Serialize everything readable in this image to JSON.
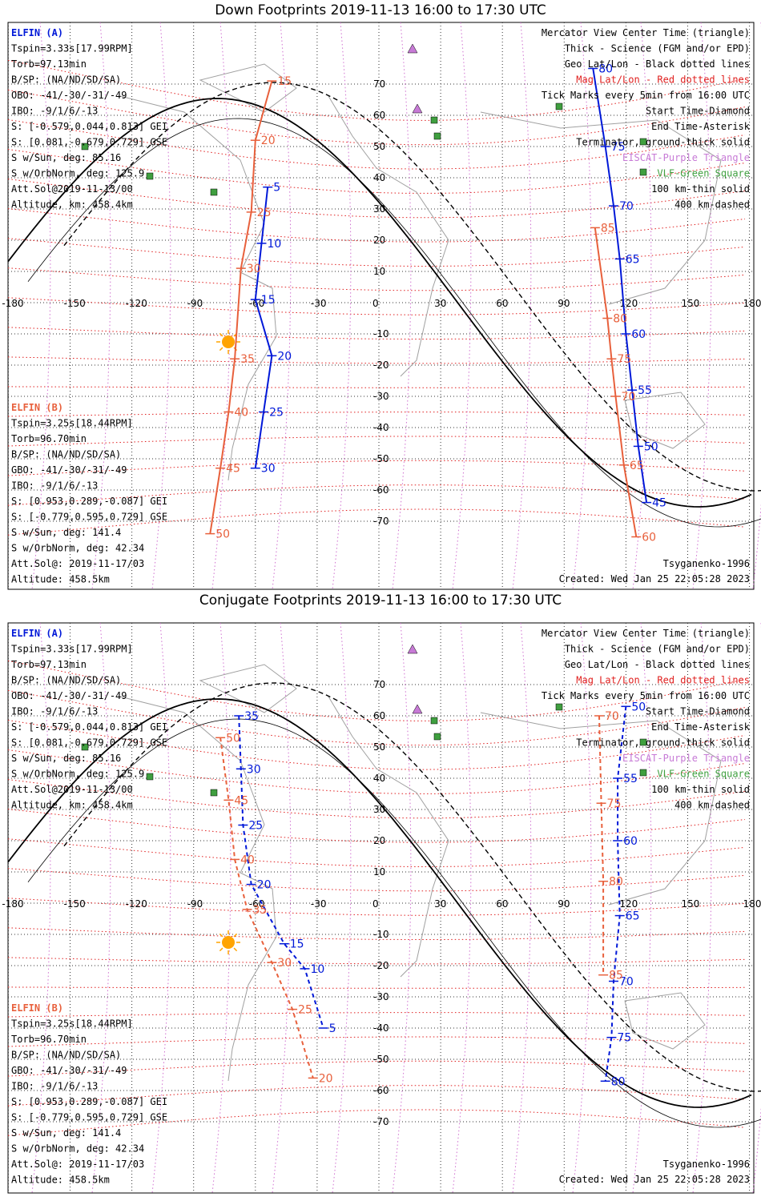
{
  "top_panel": {
    "title": "Down Footprints 2019-11-13 16:00 to 17:30 UTC",
    "elfin_a": {
      "header": "ELFIN (A)",
      "lines": [
        "Tspin=3.33s[17.99RPM]",
        "Torb=97.13min",
        "B/SP: (NA/ND/SD/SA)",
        "OBO: -41/-30/-31/-49",
        "IBO: -9/1/6/-13",
        "S: [-0.579,0.044,0.813] GEI",
        "S: [0.081,-0.679,0.729] GSE",
        "S w/Sun, deg: 85.16",
        "S w/OrbNorm, deg: 125.9",
        "Att.Sol@2019-11-13/00",
        "Altitude, km: 458.4km"
      ]
    },
    "elfin_b": {
      "header": "ELFIN (B)",
      "lines": [
        "Tspin=3.25s[18.44RPM]",
        "Torb=96.70min",
        "B/SP: (NA/ND/SD/SA)",
        "GBO: -41/-30/-31/-49",
        "IBO: -9/1/6/-13",
        "S: [0.953,0.289,-0.087] GEI",
        "S: [-0.779,0.595,0.729] GSE",
        "S w/Sun, deg: 141.4",
        "S w/OrbNorm, deg: 42.34",
        "Att.Sol@: 2019-11-17/03",
        "Altitude: 458.5km"
      ]
    },
    "legend": [
      {
        "text": "Mercator View Center Time (triangle)",
        "color": "#000000"
      },
      {
        "text": "Thick - Science (FGM and/or EPD)",
        "color": "#000000"
      },
      {
        "text": "Geo Lat/Lon - Black dotted lines",
        "color": "#000000"
      },
      {
        "text": "Mag Lat/Lon - Red dotted lines",
        "color": "#e0201f"
      },
      {
        "text": "Tick Marks every 5min from 16:00 UTC",
        "color": "#000000"
      },
      {
        "text": "Start Time-Diamond",
        "color": "#000000"
      },
      {
        "text": "End Time-Asterisk",
        "color": "#000000"
      },
      {
        "text": "Terminator, ground-thick solid",
        "color": "#000000"
      },
      {
        "text": "EISCAT-Purple Triangle",
        "color": "#c77ad6"
      },
      {
        "text": "VLF-Green Square",
        "color": "#3f9f3f"
      },
      {
        "text": "100 km-thin solid",
        "color": "#000000"
      },
      {
        "text": "400 km-dashed",
        "color": "#000000"
      }
    ],
    "model": "Tsyganenko-1996",
    "created": "Created: Wed Jan 25 22:05:28 2023",
    "ticks_a_west": [
      {
        "label": "5",
        "lon": -54,
        "lat": 37
      },
      {
        "label": "10",
        "lon": -57,
        "lat": 19
      },
      {
        "label": "15",
        "lon": -60,
        "lat": 1
      },
      {
        "label": "20",
        "lon": -52,
        "lat": -17
      },
      {
        "label": "25",
        "lon": -56,
        "lat": -35
      },
      {
        "label": "30",
        "lon": -60,
        "lat": -53
      }
    ],
    "ticks_a_east": [
      {
        "label": "80",
        "lon": 104,
        "lat": 75
      },
      {
        "label": "75",
        "lon": 110,
        "lat": 50
      },
      {
        "label": "70",
        "lon": 114,
        "lat": 31
      },
      {
        "label": "65",
        "lon": 117,
        "lat": 14
      },
      {
        "label": "60",
        "lon": 120,
        "lat": -10
      },
      {
        "label": "55",
        "lon": 123,
        "lat": -28
      },
      {
        "label": "50",
        "lon": 126,
        "lat": -46
      },
      {
        "label": "45",
        "lon": 130,
        "lat": -64
      }
    ],
    "ticks_b_west": [
      {
        "label": "15",
        "lon": -52,
        "lat": 71
      },
      {
        "label": "20",
        "lon": -60,
        "lat": 52
      },
      {
        "label": "25",
        "lon": -62,
        "lat": 29
      },
      {
        "label": "30",
        "lon": -67,
        "lat": 11
      },
      {
        "label": "35",
        "lon": -70,
        "lat": -18
      },
      {
        "label": "40",
        "lon": -73,
        "lat": -35
      },
      {
        "label": "45",
        "lon": -77,
        "lat": -53
      },
      {
        "label": "50",
        "lon": -82,
        "lat": -74
      }
    ],
    "ticks_b_east": [
      {
        "label": "85",
        "lon": 105,
        "lat": 24
      },
      {
        "label": "80",
        "lon": 111,
        "lat": -5
      },
      {
        "label": "75",
        "lon": 113,
        "lat": -18
      },
      {
        "label": "70",
        "lon": 115,
        "lat": -30
      },
      {
        "label": "65",
        "lon": 119,
        "lat": -52
      },
      {
        "label": "60",
        "lon": 125,
        "lat": -75
      }
    ]
  },
  "bottom_panel": {
    "title": "Conjugate Footprints 2019-11-13 16:00 to 17:30 UTC",
    "elfin_a": {
      "header": "ELFIN (A)",
      "lines": [
        "Tspin=3.33s[17.99RPM]",
        "Torb=97.13min",
        "B/SP: (NA/ND/SD/SA)",
        "OBO: -41/-30/-31/-49",
        "IBO: -9/1/6/-13",
        "S: [-0.579,0.044,0.813] GEI",
        "S: [0.081,-0.679,0.729] GSE",
        "S w/Sun, deg: 85.16",
        "S w/OrbNorm, deg: 125.9",
        "Att.Sol@2019-11-13/00",
        "Altitude, km: 458.4km"
      ]
    },
    "elfin_b": {
      "header": "ELFIN (B)",
      "lines": [
        "Tspin=3.25s[18.44RPM]",
        "Torb=96.70min",
        "B/SP: (NA/ND/SD/SA)",
        "GBO: -41/-30/-31/-49",
        "IBO: -9/1/6/-13",
        "S: [0.953,0.289,-0.087] GEI",
        "S: [-0.779,0.595,0.729] GSE",
        "S w/Sun, deg: 141.4",
        "S w/OrbNorm, deg: 42.34",
        "Att.Sol@: 2019-11-17/03",
        "Altitude: 458.5km"
      ]
    },
    "legend": [
      {
        "text": "Mercator View Center Time (triangle)",
        "color": "#000000"
      },
      {
        "text": "Thick - Science (FGM and/or EPD)",
        "color": "#000000"
      },
      {
        "text": "Geo Lat/Lon - Black dotted lines",
        "color": "#000000"
      },
      {
        "text": "Mag Lat/Lon - Red dotted lines",
        "color": "#e0201f"
      },
      {
        "text": "Tick Marks every 5min from 16:00 UTC",
        "color": "#000000"
      },
      {
        "text": "Start Time-Diamond",
        "color": "#000000"
      },
      {
        "text": "End Time-Asterisk",
        "color": "#000000"
      },
      {
        "text": "Terminator, ground-thick solid",
        "color": "#000000"
      },
      {
        "text": "EISCAT-Purple Triangle",
        "color": "#c77ad6"
      },
      {
        "text": "VLF-Green Square",
        "color": "#3f9f3f"
      },
      {
        "text": "100 km-thin solid",
        "color": "#000000"
      },
      {
        "text": "400 km-dashed",
        "color": "#000000"
      }
    ],
    "model": "Tsyganenko-1996",
    "created": "Created: Wed Jan 25 22:05:28 2023",
    "ticks_a_west": [
      {
        "label": "35",
        "lon": -68,
        "lat": 60
      },
      {
        "label": "30",
        "lon": -67,
        "lat": 43
      },
      {
        "label": "25",
        "lon": -66,
        "lat": 25
      },
      {
        "label": "20",
        "lon": -62,
        "lat": 6
      },
      {
        "label": "15",
        "lon": -46,
        "lat": -13
      },
      {
        "label": "10",
        "lon": -36,
        "lat": -21
      },
      {
        "label": "5",
        "lon": -27,
        "lat": -40
      }
    ],
    "ticks_a_east": [
      {
        "label": "50",
        "lon": 120,
        "lat": 63
      },
      {
        "label": "55",
        "lon": 116,
        "lat": 40
      },
      {
        "label": "60",
        "lon": 116,
        "lat": 20
      },
      {
        "label": "65",
        "lon": 117,
        "lat": -4
      },
      {
        "label": "70",
        "lon": 114,
        "lat": -25
      },
      {
        "label": "75",
        "lon": 113,
        "lat": -43
      },
      {
        "label": "80",
        "lon": 110,
        "lat": -57
      }
    ],
    "ticks_b_west": [
      {
        "label": "50",
        "lon": -77,
        "lat": 53
      },
      {
        "label": "45",
        "lon": -73,
        "lat": 33
      },
      {
        "label": "40",
        "lon": -70,
        "lat": 14
      },
      {
        "label": "35",
        "lon": -64,
        "lat": -2
      },
      {
        "label": "30",
        "lon": -52,
        "lat": -19
      },
      {
        "label": "25",
        "lon": -42,
        "lat": -34
      },
      {
        "label": "20",
        "lon": -32,
        "lat": -56
      }
    ],
    "ticks_b_east": [
      {
        "label": "70",
        "lon": 107,
        "lat": 60
      },
      {
        "label": "75",
        "lon": 108,
        "lat": 32
      },
      {
        "label": "80",
        "lon": 109,
        "lat": 7
      },
      {
        "label": "85",
        "lon": 109,
        "lat": -23
      }
    ]
  }
}
